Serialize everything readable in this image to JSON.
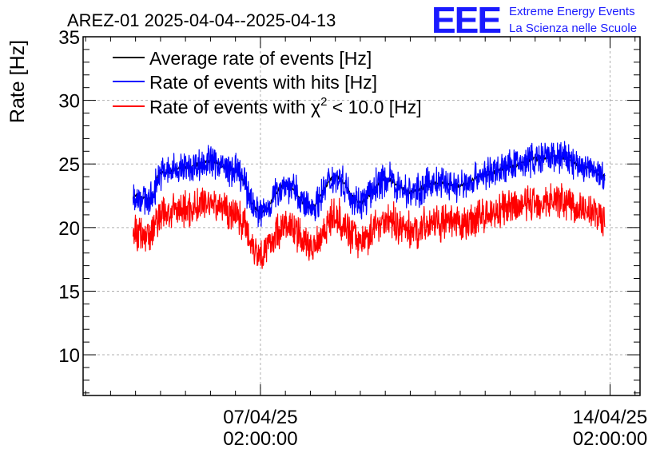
{
  "logo": {
    "mark": "EEE",
    "line1": "Extreme Energy Events",
    "line2": "La Scienza nelle Scuole",
    "color": "#1a1aff"
  },
  "chart_data": {
    "type": "line",
    "title": "AREZ-01 2025-04-04--2025-04-13",
    "ylabel": "Rate [Hz]",
    "xlabel": "",
    "ylim": [
      6.8,
      35
    ],
    "yticks": [
      10,
      15,
      20,
      25,
      30,
      35
    ],
    "grid": true,
    "legend_position": "top-left",
    "x_axis": {
      "unit": "days",
      "range_days": [
        -3.55,
        7.6
      ],
      "ticks": [
        {
          "day": 0,
          "date": "07/04/25",
          "time": "02:00:00"
        },
        {
          "day": 7,
          "date": "14/04/25",
          "time": "02:00:00"
        }
      ]
    },
    "x_days": [
      -2.55,
      -2.2,
      -2.0,
      -1.5,
      -1.0,
      -0.5,
      0.0,
      0.5,
      1.0,
      1.5,
      2.0,
      2.5,
      3.0,
      3.5,
      4.0,
      4.5,
      5.0,
      5.5,
      6.0,
      6.5,
      6.9
    ],
    "series": [
      {
        "name": "Average rate of events [Hz]",
        "color": "#000000",
        "values": [
          22.5,
          22.2,
          24.3,
          24.7,
          25.2,
          24.4,
          21.2,
          23.4,
          21.6,
          24.0,
          22.0,
          23.8,
          22.8,
          23.5,
          23.3,
          24.2,
          24.8,
          25.4,
          25.6,
          24.7,
          24.0
        ]
      },
      {
        "name": "Rate of events with hits [Hz]",
        "color": "#0000ff",
        "values": [
          22.5,
          22.2,
          24.3,
          24.7,
          25.2,
          24.4,
          21.2,
          23.4,
          21.6,
          24.0,
          22.0,
          23.8,
          22.8,
          23.5,
          23.3,
          24.2,
          24.8,
          25.4,
          25.6,
          24.7,
          24.0
        ],
        "band_halfwidth": 1.1
      },
      {
        "name": "Rate of events with χ² < 10.0 [Hz]",
        "color": "#ff0000",
        "values": [
          19.7,
          19.5,
          21.0,
          21.4,
          22.0,
          21.1,
          18.0,
          20.2,
          18.6,
          20.8,
          19.0,
          20.6,
          19.8,
          20.4,
          20.2,
          21.0,
          21.5,
          22.0,
          22.2,
          21.4,
          20.8
        ],
        "band_halfwidth": 1.2
      }
    ],
    "legend_label_main": "Rate of events with χ",
    "legend_label_sup": "2",
    "legend_label_rest": " < 10.0 [Hz]"
  }
}
